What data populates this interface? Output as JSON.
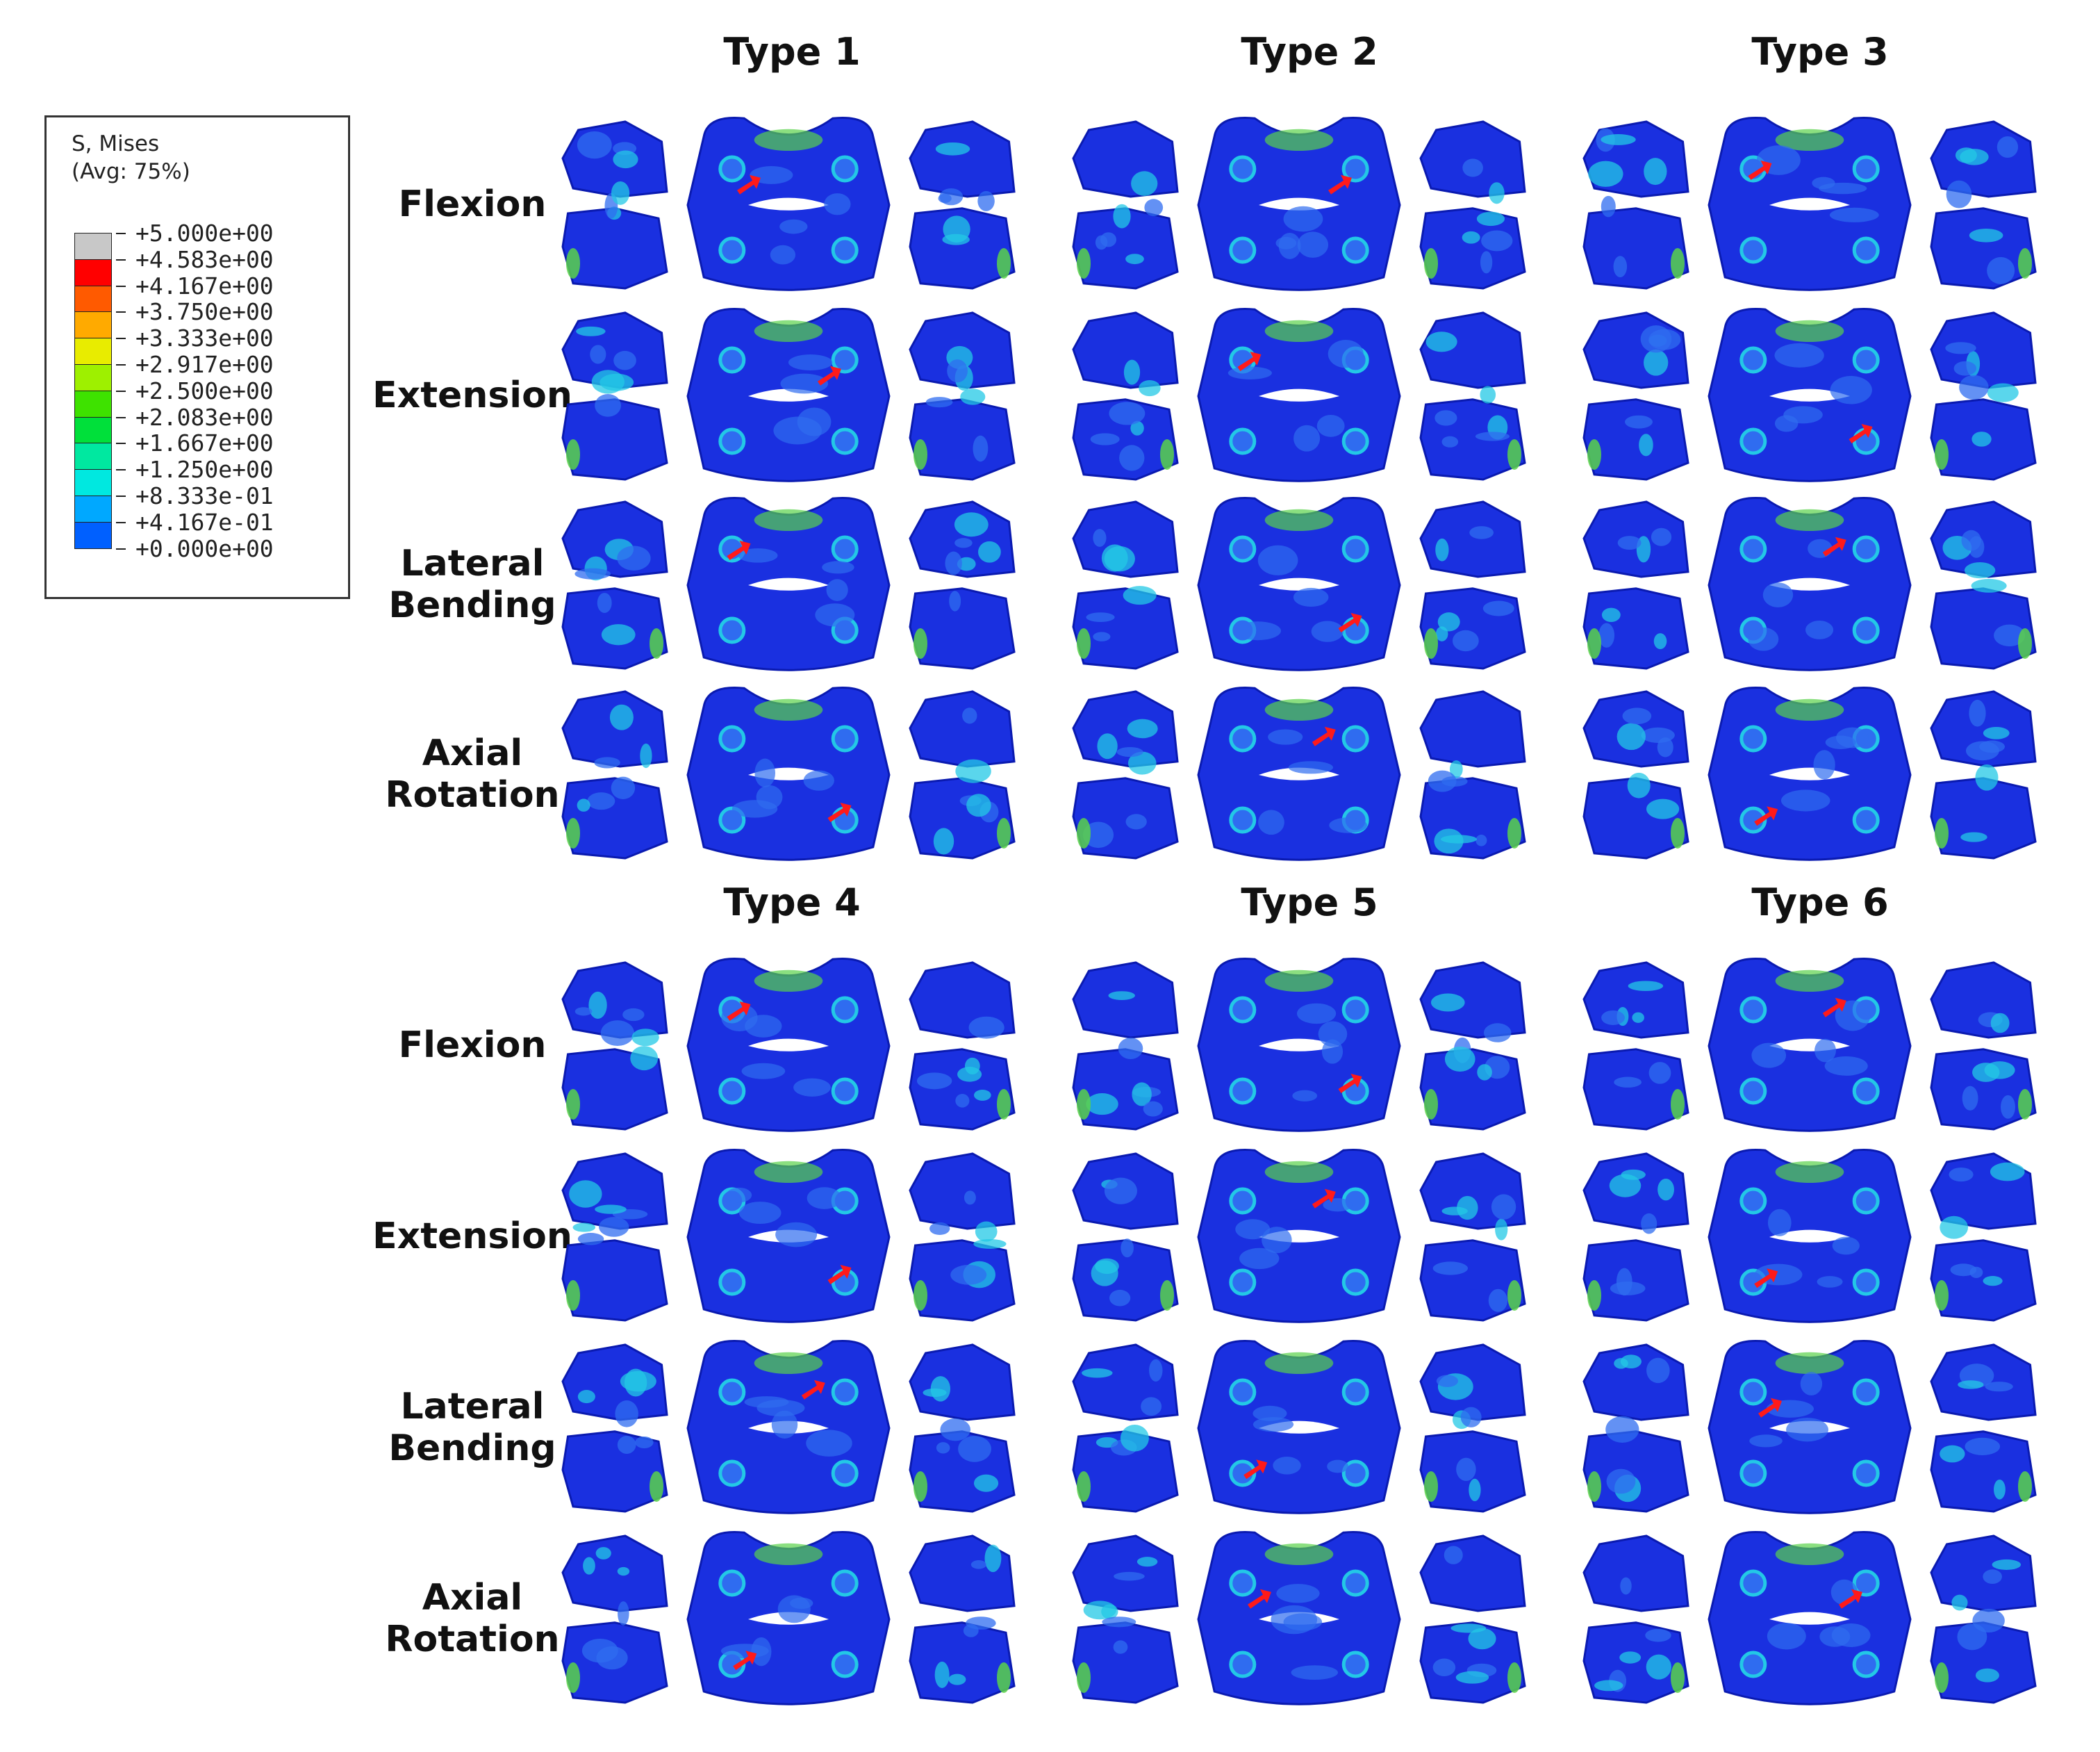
{
  "legend": {
    "title_line1": "S, Mises",
    "title_line2": "(Avg: 75%)",
    "levels": [
      {
        "label": "+5.000e+00",
        "color": "#c8c8c8"
      },
      {
        "label": "+4.583e+00",
        "color": "#ff0000"
      },
      {
        "label": "+4.167e+00",
        "color": "#ff5a00"
      },
      {
        "label": "+3.750e+00",
        "color": "#ffaa00"
      },
      {
        "label": "+3.333e+00",
        "color": "#e8ec00"
      },
      {
        "label": "+2.917e+00",
        "color": "#9ef000"
      },
      {
        "label": "+2.500e+00",
        "color": "#3ee200"
      },
      {
        "label": "+2.083e+00",
        "color": "#00e03a"
      },
      {
        "label": "+1.667e+00",
        "color": "#00e8a0"
      },
      {
        "label": "+1.250e+00",
        "color": "#00e8e0"
      },
      {
        "label": "+8.333e-01",
        "color": "#00a8ff"
      },
      {
        "label": "+4.167e-01",
        "color": "#0060ff"
      },
      {
        "label": "+0.000e+00",
        "color": "#0018ee"
      }
    ]
  },
  "types": [
    "Type 1",
    "Type 2",
    "Type 3",
    "Type 4",
    "Type 5",
    "Type 6"
  ],
  "rows": [
    {
      "label": "Flexion"
    },
    {
      "label": "Extension"
    },
    {
      "label": "Lateral\nBending"
    },
    {
      "label": "Axial\nRotation"
    }
  ],
  "colors": {
    "model_dark": "#0a1ab0",
    "model_base": "#1a30e0",
    "model_light": "#2f6cf0",
    "model_cyan": "#23c8e6",
    "model_green": "#5ad24a",
    "arrow": "#ff1a1a"
  }
}
